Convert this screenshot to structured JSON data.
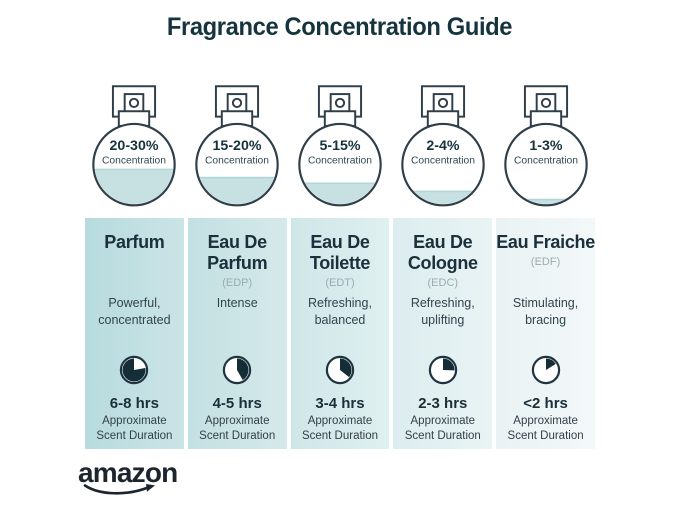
{
  "page": {
    "title": "Fragrance Concentration Guide",
    "background": "#ffffff"
  },
  "brand": {
    "logo_text": "amazon"
  },
  "colors": {
    "title": "#16343e",
    "outline": "#2f3e48",
    "liquid": "#c7e1e3",
    "liquid_edge": "#b2d5d8",
    "percent_text": "#16323c",
    "bottle_label_text": "#2e4751",
    "name_text": "#1b303b",
    "abbrev_text": "#9aacb2",
    "desc_text": "#32444d",
    "duration_text": "#1b2f39",
    "note_text": "#333f47",
    "clock_stroke": "#1e3440",
    "clock_fill": "#142d37",
    "logo": "#1c252e"
  },
  "icons": {
    "bottle": "perfume-bottle-icon",
    "clock": "duration-clock-icon",
    "smile": "amazon-smile-icon"
  },
  "columns": [
    {
      "bottle": {
        "concentration": "20-30%",
        "label": "Concentration",
        "fill_level": 0.45
      },
      "name": "Parfum",
      "abbrev": "",
      "description": "Powerful, concentrated",
      "duration": "6-8 hrs",
      "duration_note": "Approximate Scent Duration",
      "clock": {
        "start_deg": 80,
        "end_deg": 360
      },
      "card_bg": [
        "#b7dbde",
        "#cbe4e6"
      ]
    },
    {
      "bottle": {
        "concentration": "15-20%",
        "label": "Concentration",
        "fill_level": 0.35
      },
      "name": "Eau De Parfum",
      "abbrev": "(EDP)",
      "description": "Intense",
      "duration": "4-5 hrs",
      "duration_note": "Approximate Scent Duration",
      "clock": {
        "start_deg": 0,
        "end_deg": 150
      },
      "card_bg": [
        "#c3e0e2",
        "#d5e9ea"
      ]
    },
    {
      "bottle": {
        "concentration": "5-15%",
        "label": "Concentration",
        "fill_level": 0.28
      },
      "name": "Eau De Toilette",
      "abbrev": "(EDT)",
      "description": "Refreshing, balanced",
      "duration": "3-4 hrs",
      "duration_note": "Approximate Scent Duration",
      "clock": {
        "start_deg": 0,
        "end_deg": 128
      },
      "card_bg": [
        "#cfe6e8",
        "#dff0f0"
      ]
    },
    {
      "bottle": {
        "concentration": "2-4%",
        "label": "Concentration",
        "fill_level": 0.18
      },
      "name": "Eau De Cologne",
      "abbrev": "(EDC)",
      "description": "Refreshing, uplifting",
      "duration": "2-3 hrs",
      "duration_note": "Approximate Scent Duration",
      "clock": {
        "start_deg": 0,
        "end_deg": 92
      },
      "card_bg": [
        "#dcedef",
        "#e9f3f4"
      ]
    },
    {
      "bottle": {
        "concentration": "1-3%",
        "label": "Concentration",
        "fill_level": 0.08
      },
      "name": "Eau Fraiche",
      "abbrev": "(EDF)",
      "description": "Stimulating, bracing",
      "duration": "<2 hrs",
      "duration_note": "Approximate Scent Duration",
      "clock": {
        "start_deg": 0,
        "end_deg": 58
      },
      "card_bg": [
        "#e9f2f4",
        "#f3f8f9"
      ]
    }
  ]
}
